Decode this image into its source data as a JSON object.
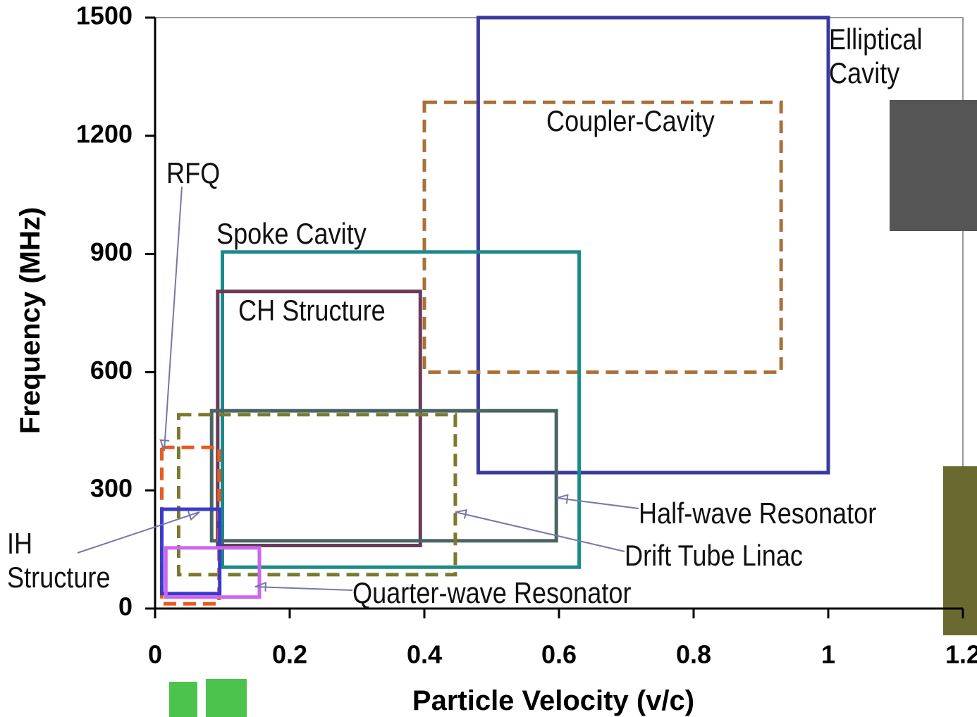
{
  "chart_data": {
    "type": "range-box",
    "x_label": "Particle Velocity (v/c)",
    "y_label": "Frequency (MHz)",
    "xlim": [
      0,
      1.2
    ],
    "xticks": [
      0,
      0.2,
      0.4,
      0.6,
      0.8,
      1,
      1.2
    ],
    "ylim": [
      0,
      1500
    ],
    "yticks": [
      0,
      300,
      600,
      900,
      1200,
      1500
    ],
    "series": [
      {
        "name": "Elliptical Cavity",
        "color": "#3a3a9e",
        "dashed": false,
        "x": [
          0.48,
          1.0
        ],
        "y": [
          345,
          1500
        ]
      },
      {
        "name": "Coupler-Cavity",
        "color": "#a87038",
        "dashed": true,
        "x": [
          0.4,
          0.93
        ],
        "y": [
          600,
          1285
        ]
      },
      {
        "name": "Spoke Cavity",
        "color": "#1a8a8a",
        "dashed": false,
        "x": [
          0.1,
          0.63
        ],
        "y": [
          105,
          905
        ]
      },
      {
        "name": "CH Structure",
        "color": "#6a3a5a",
        "dashed": false,
        "x": [
          0.093,
          0.394
        ],
        "y": [
          160,
          805
        ]
      },
      {
        "name": "Half-wave Resonator",
        "color": "#4a6464",
        "dashed": false,
        "x": [
          0.084,
          0.596
        ],
        "y": [
          172,
          502
        ]
      },
      {
        "name": "Drift Tube Linac",
        "color": "#7a7a2e",
        "dashed": true,
        "x": [
          0.035,
          0.446
        ],
        "y": [
          86,
          492
        ]
      },
      {
        "name": "RFQ",
        "color": "#e85a1e",
        "dashed": true,
        "x": [
          0.01,
          0.095
        ],
        "y": [
          12,
          409
        ]
      },
      {
        "name": "IH Structure",
        "color": "#3a3acc",
        "dashed": false,
        "x": [
          0.01,
          0.096
        ],
        "y": [
          38,
          252
        ]
      },
      {
        "name": "Quarter-wave Resonator",
        "color": "#cc66ee",
        "dashed": false,
        "x": [
          0.016,
          0.155
        ],
        "y": [
          29,
          154
        ]
      }
    ]
  }
}
